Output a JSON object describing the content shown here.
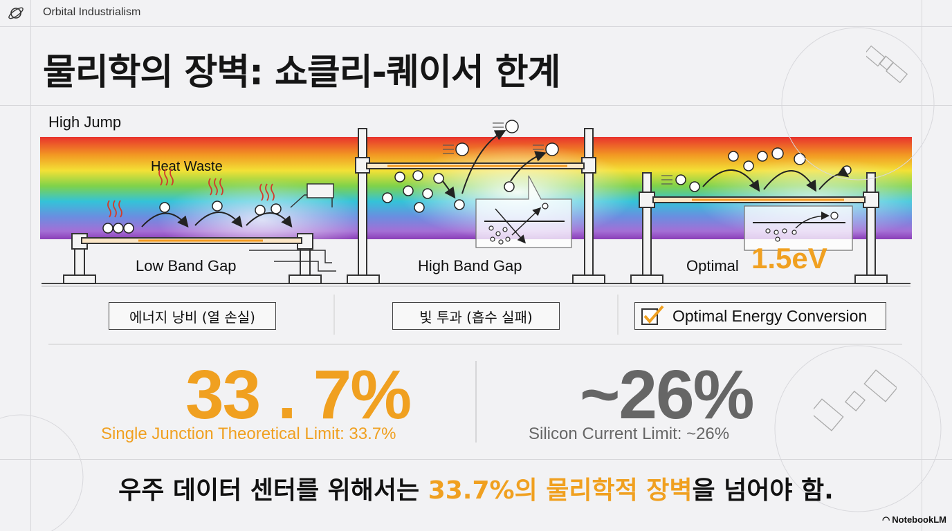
{
  "header": {
    "app_title": "Orbital Industrialism"
  },
  "title": "물리학의 장벽: 쇼클리-퀘이서 한계",
  "diagram": {
    "high_jump_label": "High Jump",
    "heat_waste_label": "Heat Waste",
    "panels": [
      {
        "label": "Low Band Gap",
        "tag": "에너지 낭비 (열 손실)"
      },
      {
        "label": "High Band Gap",
        "tag": "빛 투과 (흡수 실패)"
      },
      {
        "label": "Optimal",
        "value": "1.5eV",
        "tag": "Optimal Energy Conversion"
      }
    ]
  },
  "stats": {
    "single_junction": {
      "value": "33 . 7%",
      "caption": "Single Junction Theoretical Limit: 33.7%"
    },
    "silicon": {
      "value": "~26%",
      "caption": "Silicon Current Limit: ~26%"
    }
  },
  "footer": {
    "text_before": "우주 데이터 센터를 위해서는 ",
    "text_highlight": "33.7%의 물리학적 장벽",
    "text_after": "을 넘어야 함."
  },
  "branding": {
    "notebooklm": "NotebookLM"
  },
  "colors": {
    "accent": "#f0a020",
    "silicon_gray": "#666666"
  }
}
